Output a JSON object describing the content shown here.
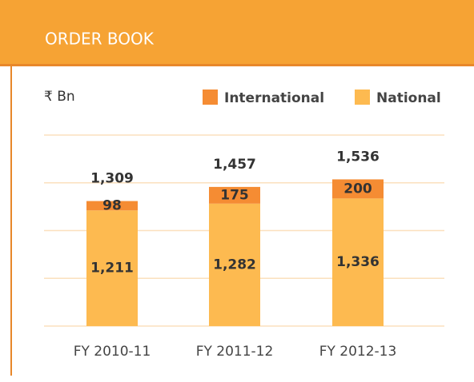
{
  "chart_data": {
    "type": "stacked_bar",
    "title": "ORDER BOOK",
    "unit_label": "₹ Bn",
    "categories": [
      "FY 2010-11",
      "FY 2011-12",
      "FY 2012-13"
    ],
    "series": [
      {
        "name": "National",
        "color": "#fdba50",
        "values": [
          1211,
          1282,
          1336
        ],
        "value_labels": [
          "1,211",
          "1,282",
          "1,336"
        ]
      },
      {
        "name": "International",
        "color": "#f58c33",
        "values": [
          98,
          175,
          200
        ]
      }
    ],
    "totals": [
      1309,
      1457,
      1536
    ],
    "total_labels": [
      "1,309",
      "1,457",
      "1,536"
    ],
    "ylim": [
      0,
      2000
    ],
    "yticks": [
      0,
      500,
      1000,
      1500,
      2000
    ],
    "grid": true,
    "legend": "top-right"
  }
}
